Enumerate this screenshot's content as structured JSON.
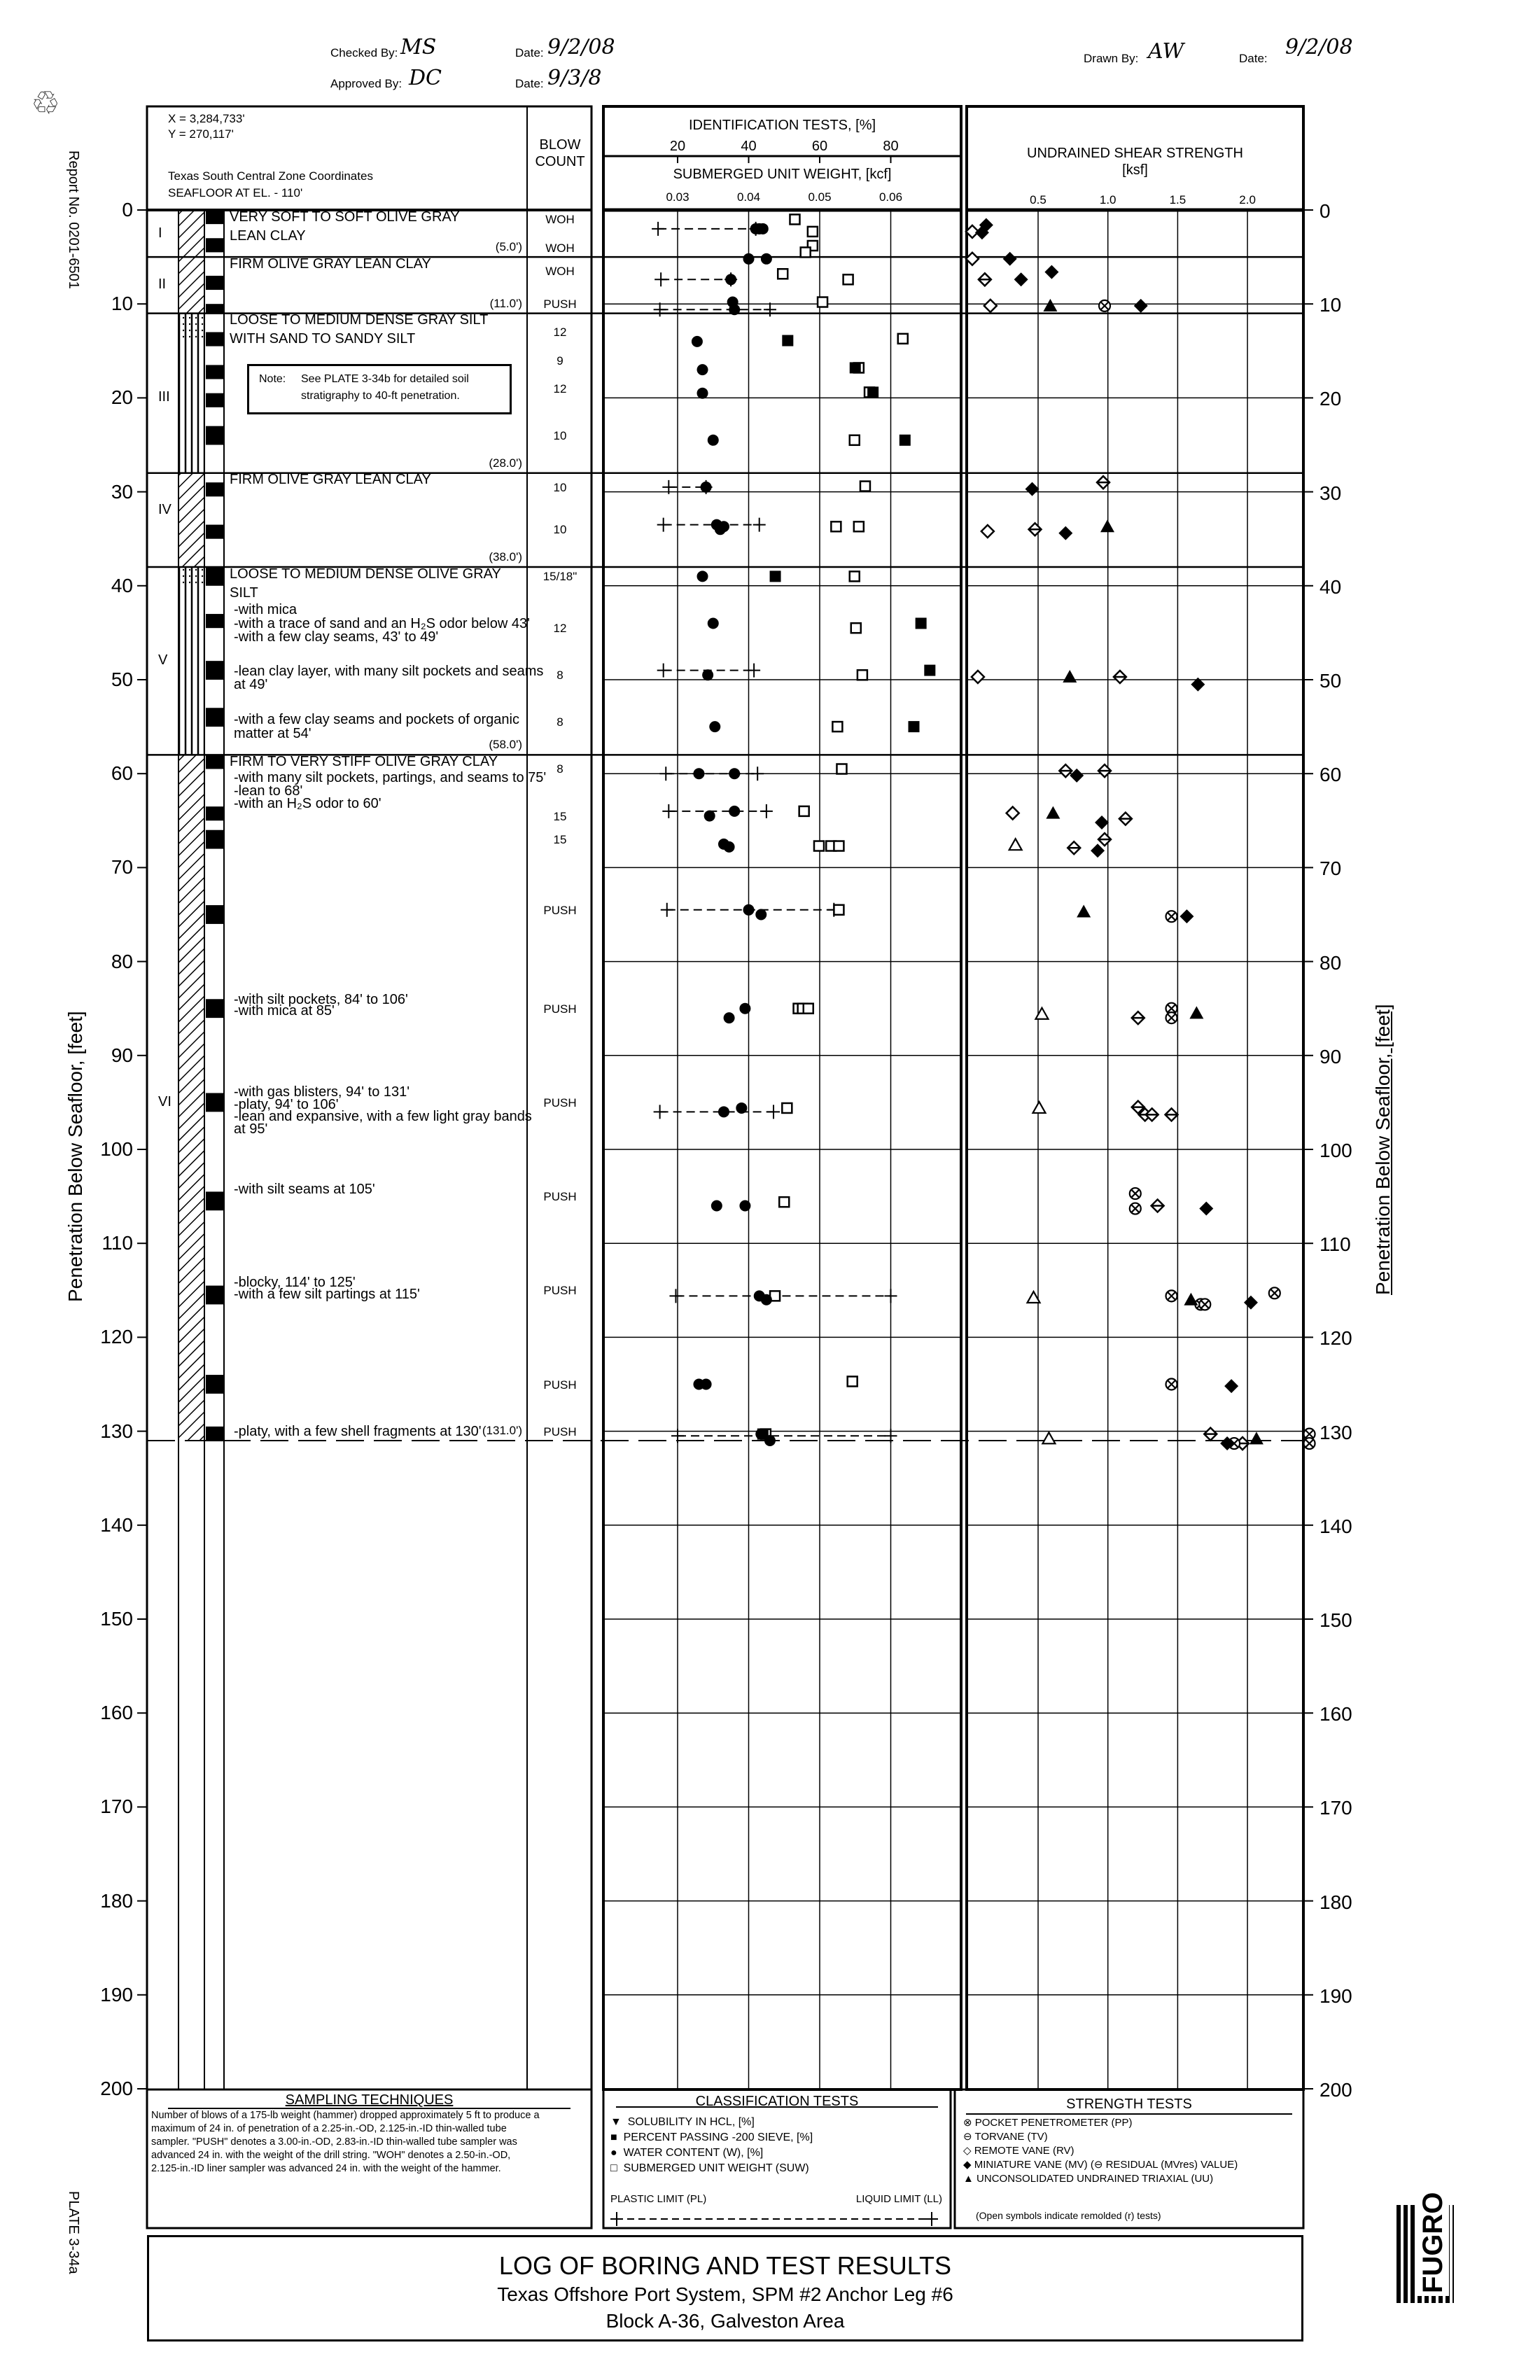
{
  "signoff": {
    "checked_label": "Checked By:",
    "checked_initials": "MS",
    "checked_date_label": "Date:",
    "checked_date": "9/2/08",
    "approved_label": "Approved By:",
    "approved_initials": "DC",
    "approved_date_label": "Date:",
    "approved_date": "9/3/8",
    "drawn_label": "Drawn By:",
    "drawn_initials": "AW",
    "drawn_date_label": "Date:",
    "drawn_date": "9/2/08"
  },
  "side": {
    "report_no": "Report No. 0201-6501",
    "depth_axis_label": "Penetration Below Seafloor, [feet]",
    "plate": "PLATE 3-34a",
    "logo": "FUGRO"
  },
  "log_header": {
    "x_coord": "X = 3,284,733'",
    "y_coord": "Y = 270,117'",
    "zone": "Texas South Central Zone Coordinates",
    "seafloor": "SEAFLOOR AT EL. - 110'",
    "blow_count_1": "BLOW",
    "blow_count_2": "COUNT"
  },
  "strata": [
    {
      "unit": "I",
      "bottom": "(5.0')",
      "lines": [
        "VERY SOFT TO SOFT OLIVE GRAY",
        "LEAN CLAY"
      ]
    },
    {
      "unit": "II",
      "bottom": "(11.0')",
      "lines": [
        "FIRM OLIVE GRAY LEAN CLAY"
      ]
    },
    {
      "unit": "III",
      "bottom": "(28.0')",
      "lines": [
        "LOOSE TO MEDIUM DENSE GRAY SILT",
        "WITH SAND TO SANDY SILT"
      ]
    },
    {
      "unit": "IV",
      "bottom": "(38.0')",
      "lines": [
        "FIRM OLIVE GRAY LEAN CLAY"
      ]
    },
    {
      "unit": "V",
      "bottom": "(58.0')",
      "lines": [
        "LOOSE TO MEDIUM DENSE OLIVE GRAY",
        "SILT",
        "-with mica",
        "-with a trace of sand and an H₂S odor below 43'",
        "-with a few clay seams, 43' to 49'",
        "-lean clay layer, with many silt pockets and seams",
        " at 49'",
        "-with a few clay seams and pockets of organic",
        " matter at 54'"
      ]
    },
    {
      "unit": "VI",
      "bottom": "(131.0')",
      "lines": [
        "FIRM TO VERY STIFF OLIVE GRAY CLAY",
        "-with many silt pockets, partings, and seams to 75'",
        "-lean to 68'",
        "-with an H₂S odor to 60'",
        "-with silt pockets, 84' to 106'",
        "-with mica at 85'",
        "-with gas blisters, 94' to 131'",
        "-platy, 94' to 106'",
        "-lean and expansive, with a few light gray bands",
        " at 95'",
        "-with silt seams at 105'",
        "-blocky, 114' to 125'",
        "-with a few silt partings at 115'",
        "-platy, with a few shell fragments at 130'"
      ]
    }
  ],
  "note": {
    "label": "Note:",
    "text1": "See PLATE 3-34b for detailed soil",
    "text2": "stratigraphy to 40-ft penetration."
  },
  "blow_counts": [
    {
      "depth": 1,
      "value": "WOH"
    },
    {
      "depth": 4,
      "value": "WOH"
    },
    {
      "depth": 6.5,
      "value": "WOH"
    },
    {
      "depth": 10,
      "value": "PUSH"
    },
    {
      "depth": 13,
      "value": "12"
    },
    {
      "depth": 16,
      "value": "9"
    },
    {
      "depth": 19,
      "value": "12"
    },
    {
      "depth": 24,
      "value": "10"
    },
    {
      "depth": 29.5,
      "value": "10"
    },
    {
      "depth": 34,
      "value": "10"
    },
    {
      "depth": 39,
      "value": "15/18\""
    },
    {
      "depth": 44.5,
      "value": "12"
    },
    {
      "depth": 49.5,
      "value": "8"
    },
    {
      "depth": 54.5,
      "value": "8"
    },
    {
      "depth": 59.5,
      "value": "8"
    },
    {
      "depth": 64.5,
      "value": "15"
    },
    {
      "depth": 67,
      "value": "15"
    },
    {
      "depth": 74.5,
      "value": "PUSH"
    },
    {
      "depth": 85,
      "value": "PUSH"
    },
    {
      "depth": 95,
      "value": "PUSH"
    },
    {
      "depth": 105,
      "value": "PUSH"
    },
    {
      "depth": 115,
      "value": "PUSH"
    },
    {
      "depth": 125,
      "value": "PUSH"
    },
    {
      "depth": 130,
      "value": "PUSH"
    }
  ],
  "samples": [
    [
      0,
      1.5
    ],
    [
      3,
      4.5
    ],
    [
      7,
      8.5
    ],
    [
      10,
      11
    ],
    [
      13,
      14.5
    ],
    [
      16.5,
      18
    ],
    [
      19.5,
      21
    ],
    [
      23,
      25
    ],
    [
      29,
      30.5
    ],
    [
      33.5,
      35
    ],
    [
      38,
      40
    ],
    [
      43,
      44.5
    ],
    [
      48,
      50
    ],
    [
      53,
      55
    ],
    [
      58,
      59.5
    ],
    [
      63.5,
      65
    ],
    [
      66,
      68
    ],
    [
      74,
      76
    ],
    [
      84,
      86
    ],
    [
      94,
      96
    ],
    [
      104.5,
      106.5
    ],
    [
      114.5,
      116.5
    ],
    [
      124,
      126
    ],
    [
      129.5,
      131
    ]
  ],
  "chart_data": {
    "type": "scatter",
    "depth_axis": {
      "label": "Penetration Below Seafloor, [feet]",
      "range": [
        0,
        200
      ],
      "ticks": [
        0,
        10,
        20,
        30,
        40,
        50,
        60,
        70,
        80,
        90,
        100,
        110,
        120,
        130,
        140,
        150,
        160,
        170,
        180,
        190,
        200
      ]
    },
    "identification_tests": {
      "title": "IDENTIFICATION TESTS, [%]",
      "ticks": [
        "20",
        "40",
        "60",
        "80"
      ],
      "unit_weight_title": "SUBMERGED UNIT WEIGHT, [kcf]",
      "unit_weight_ticks": [
        "0.03",
        "0.04",
        "0.05",
        "0.06"
      ],
      "water_content": [
        [
          2,
          42
        ],
        [
          2,
          43
        ],
        [
          2,
          44
        ],
        [
          5.2,
          40
        ],
        [
          5.2,
          45
        ],
        [
          7.4,
          35
        ],
        [
          9.8,
          35.5
        ],
        [
          10.6,
          36
        ],
        [
          14,
          25.5
        ],
        [
          17,
          27
        ],
        [
          19.5,
          27
        ],
        [
          24.5,
          30
        ],
        [
          29.5,
          28
        ],
        [
          33.5,
          31
        ],
        [
          33.7,
          33
        ],
        [
          34,
          32
        ],
        [
          39,
          27
        ],
        [
          44,
          30
        ],
        [
          49.5,
          28.5
        ],
        [
          55,
          30.5
        ],
        [
          60,
          26
        ],
        [
          60,
          36
        ],
        [
          64,
          36
        ],
        [
          64.5,
          29
        ],
        [
          67.5,
          33
        ],
        [
          67.8,
          34.5
        ],
        [
          74.5,
          40
        ],
        [
          75,
          43.5
        ],
        [
          85,
          39
        ],
        [
          86,
          34.5
        ],
        [
          95.6,
          38
        ],
        [
          96,
          33
        ],
        [
          106,
          31
        ],
        [
          106,
          39
        ],
        [
          115.6,
          43
        ],
        [
          116,
          45
        ],
        [
          125,
          26
        ],
        [
          125,
          28
        ],
        [
          130.3,
          43.5
        ],
        [
          131,
          46
        ]
      ],
      "percent_passing": [
        [
          13.9,
          51
        ],
        [
          16.8,
          70
        ],
        [
          19.4,
          75
        ],
        [
          24.5,
          84
        ],
        [
          39,
          47.5
        ],
        [
          44,
          88.5
        ],
        [
          49,
          91
        ],
        [
          55,
          86.5
        ],
        [
          130.3,
          44
        ]
      ],
      "submerged_unit_weight": [
        [
          1,
          0.0465
        ],
        [
          2.3,
          0.049
        ],
        [
          3.8,
          0.049
        ],
        [
          4.5,
          0.048
        ],
        [
          6.8,
          0.0448
        ],
        [
          7.4,
          0.054
        ],
        [
          9.8,
          0.0504
        ],
        [
          13.7,
          0.0617
        ],
        [
          16.8,
          0.0555
        ],
        [
          19.4,
          0.057
        ],
        [
          24.5,
          0.0549
        ],
        [
          29.4,
          0.0564
        ],
        [
          33.7,
          0.0523
        ],
        [
          33.7,
          0.0555
        ],
        [
          39,
          0.0549
        ],
        [
          44.5,
          0.0551
        ],
        [
          49.5,
          0.056
        ],
        [
          55,
          0.0525
        ],
        [
          59.5,
          0.0531
        ],
        [
          64,
          0.0478
        ],
        [
          67.7,
          0.0499
        ],
        [
          67.7,
          0.0516
        ],
        [
          67.7,
          0.0527
        ],
        [
          74.5,
          0.0527
        ],
        [
          85,
          0.047
        ],
        [
          85,
          0.0476
        ],
        [
          85,
          0.0484
        ],
        [
          95.6,
          0.0454
        ],
        [
          105.6,
          0.045
        ],
        [
          115.6,
          0.0437
        ],
        [
          124.7,
          0.0546
        ],
        [
          130.3,
          0.0424
        ]
      ],
      "atterberg_limits": [
        [
          2,
          14.5,
          42
        ],
        [
          7.4,
          15.3,
          35
        ],
        [
          10.6,
          15,
          46
        ],
        [
          29.5,
          17.5,
          28
        ],
        [
          33.5,
          16,
          43
        ],
        [
          49,
          16,
          41.5
        ],
        [
          60,
          16.7,
          42.5
        ],
        [
          64,
          17.5,
          45
        ],
        [
          74.5,
          17,
          64
        ],
        [
          96,
          15,
          47
        ],
        [
          115.6,
          19.5,
          80
        ],
        [
          130.5,
          20,
          80
        ]
      ]
    },
    "strength": {
      "title": "UNDRAINED SHEAR STRENGTH",
      "unit": "[ksf]",
      "ticks": [
        "0.5",
        "1.0",
        "1.5",
        "2.0"
      ],
      "miniature_vane": [
        [
          1.6,
          0.13
        ],
        [
          2.4,
          0.1
        ],
        [
          5.2,
          0.3
        ],
        [
          6.6,
          0.6
        ],
        [
          7.4,
          0.38
        ],
        [
          10.2,
          1.24
        ],
        [
          29.7,
          0.46
        ],
        [
          34.4,
          0.7
        ],
        [
          50.5,
          1.65
        ],
        [
          60.2,
          0.78
        ],
        [
          65.2,
          0.96
        ],
        [
          68.2,
          0.93
        ],
        [
          75.2,
          1.57
        ],
        [
          106.3,
          1.71
        ],
        [
          116.3,
          2.03
        ],
        [
          125.2,
          1.89
        ],
        [
          131.3,
          1.86
        ]
      ],
      "remote_vane": [
        [
          2.3,
          0.03
        ],
        [
          5.2,
          0.03
        ],
        [
          10.2,
          0.16
        ],
        [
          34.2,
          0.14
        ],
        [
          49.7,
          0.07
        ],
        [
          64.2,
          0.32
        ]
      ],
      "torvane": [
        [
          7.4,
          0.12
        ],
        [
          29,
          0.97
        ],
        [
          34,
          0.48
        ],
        [
          49.7,
          1.09
        ],
        [
          59.7,
          0.7
        ],
        [
          59.7,
          0.98
        ],
        [
          64.8,
          1.13
        ],
        [
          67,
          0.98
        ],
        [
          67.9,
          0.76
        ],
        [
          86,
          1.22
        ],
        [
          95.5,
          1.22
        ],
        [
          96.3,
          1.27
        ],
        [
          96.3,
          1.32
        ],
        [
          96.3,
          1.46
        ],
        [
          106,
          1.36
        ],
        [
          130.3,
          1.74
        ],
        [
          131.3,
          1.97
        ]
      ],
      "pocket_penetrometer": [
        [
          10.2,
          0.98
        ],
        [
          75.2,
          1.46
        ],
        [
          85,
          1.46
        ],
        [
          86,
          1.46
        ],
        [
          104.7,
          1.2
        ],
        [
          106.3,
          1.2
        ],
        [
          115.6,
          1.46
        ],
        [
          116.5,
          1.67
        ],
        [
          116.5,
          1.7
        ],
        [
          115.3,
          2.2
        ],
        [
          125,
          1.46
        ],
        [
          130.3,
          2.45
        ],
        [
          131.3,
          2.45
        ],
        [
          131.3,
          1.91
        ]
      ],
      "uu_triaxial": [
        [
          10.2,
          0.59
        ],
        [
          33.7,
          1.0
        ],
        [
          49.7,
          0.73
        ],
        [
          64.2,
          0.61
        ],
        [
          74.7,
          0.83
        ],
        [
          85.5,
          1.64
        ],
        [
          116,
          1.6
        ],
        [
          130.8,
          2.07
        ]
      ],
      "uu_triaxial_remolded": [
        [
          67.6,
          0.34
        ],
        [
          85.6,
          0.53
        ],
        [
          95.6,
          0.51
        ],
        [
          115.8,
          0.47
        ],
        [
          130.8,
          0.58
        ]
      ]
    }
  },
  "legend": {
    "sampling_title": "SAMPLING TECHNIQUES",
    "sampling_lines": [
      "Number of blows of a 175-lb weight (hammer) dropped approximately 5 ft to produce a",
      "maximum of 24 in. of penetration of a 2.25-in.-OD, 2.125-in.-ID thin-walled tube",
      "sampler.  \"PUSH\" denotes a 3.00-in.-OD, 2.83-in.-ID thin-walled tube sampler was",
      "advanced 24 in. with the weight of the drill string. \"WOH\" denotes a 2.50-in.-OD,",
      "2.125-in.-ID liner sampler was advanced 24 in. with the weight of the hammer."
    ],
    "classification_title": "CLASSIFICATION TESTS",
    "classification_items": [
      {
        "icon": "▼",
        "label": "SOLUBILITY IN HCL, [%]"
      },
      {
        "icon": "■",
        "label": "PERCENT PASSING -200 SIEVE, [%]"
      },
      {
        "icon": "●",
        "label": "WATER CONTENT (W), [%]"
      },
      {
        "icon": "□",
        "label": "SUBMERGED UNIT WEIGHT (SUW)"
      }
    ],
    "plastic_limit": "PLASTIC LIMIT (PL)",
    "liquid_limit": "LIQUID LIMIT (LL)",
    "strength_title": "STRENGTH TESTS",
    "strength_items": [
      {
        "icon": "⊗",
        "label": "POCKET PENETROMETER (PP)"
      },
      {
        "icon": "⊖",
        "label": "TORVANE (TV)"
      },
      {
        "icon": "◇",
        "label": "REMOTE VANE (RV)"
      },
      {
        "icon": "◆",
        "label": "MINIATURE VANE (MV)  (⊖  RESIDUAL (MVres) VALUE)"
      },
      {
        "icon": "▲",
        "label": "UNCONSOLIDATED UNDRAINED TRIAXIAL (UU)"
      }
    ],
    "strength_note": "(Open symbols indicate remolded (r) tests)"
  },
  "title_block": {
    "title": "LOG OF BORING AND TEST RESULTS",
    "line2": "Texas Offshore Port System, SPM #2 Anchor Leg #6",
    "line3": "Block A-36, Galveston Area"
  }
}
